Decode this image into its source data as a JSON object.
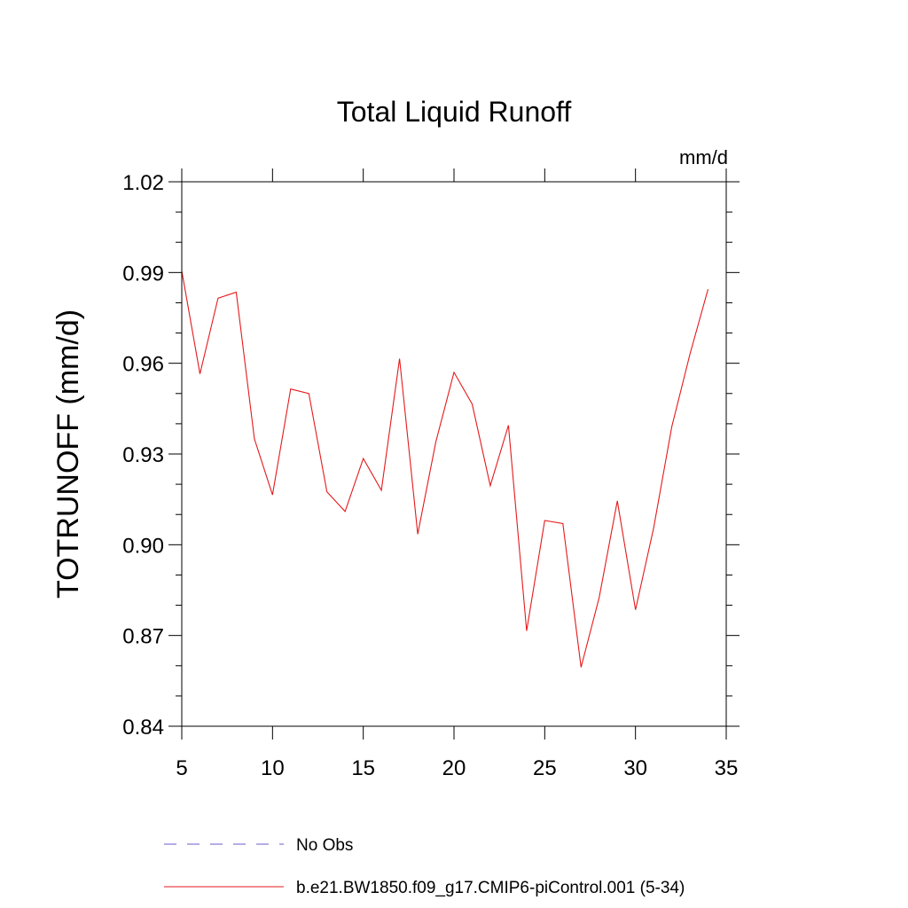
{
  "chart_data": {
    "type": "line",
    "title": "Total Liquid Runoff",
    "units": "mm/d",
    "ylabel": "TOTRUNOFF  (mm/d)",
    "xlabel": "",
    "xlim": [
      5,
      35
    ],
    "ylim": [
      0.84,
      1.02
    ],
    "xticks": [
      5,
      10,
      15,
      20,
      25,
      30,
      35
    ],
    "xtick_labels": [
      "5",
      "10",
      "15",
      "20",
      "25",
      "30",
      "35"
    ],
    "yticks": [
      0.84,
      0.87,
      0.9,
      0.93,
      0.96,
      0.99,
      1.02
    ],
    "ytick_labels": [
      "0.84",
      "0.87",
      "0.90",
      "0.93",
      "0.96",
      "0.99",
      "1.02"
    ],
    "grid": false,
    "legend_position": "bottom",
    "series": [
      {
        "name": "b.e21.BW1850.f09_g17.CMIP6-piControl.001 (5-34)",
        "color": "#e41a1c",
        "dash": "solid",
        "x": [
          5,
          6,
          7,
          8,
          9,
          10,
          11,
          12,
          13,
          14,
          15,
          16,
          17,
          18,
          19,
          20,
          21,
          22,
          23,
          24,
          25,
          26,
          27,
          28,
          29,
          30,
          31,
          32,
          33,
          34
        ],
        "values": [
          0.9905,
          0.9565,
          0.9815,
          0.9835,
          0.935,
          0.9165,
          0.9515,
          0.95,
          0.9175,
          0.911,
          0.9285,
          0.918,
          0.9615,
          0.9035,
          0.934,
          0.957,
          0.9465,
          0.9195,
          0.9395,
          0.8715,
          0.908,
          0.907,
          0.8595,
          0.8825,
          0.9145,
          0.8785,
          0.9055,
          0.939,
          0.963,
          0.9845
        ]
      }
    ],
    "legend": [
      {
        "label": "No Obs",
        "color": "#6a5acd",
        "dash": "dashed"
      },
      {
        "label": "b.e21.BW1850.f09_g17.CMIP6-piControl.001 (5-34)",
        "color": "#e41a1c",
        "dash": "solid"
      }
    ]
  }
}
